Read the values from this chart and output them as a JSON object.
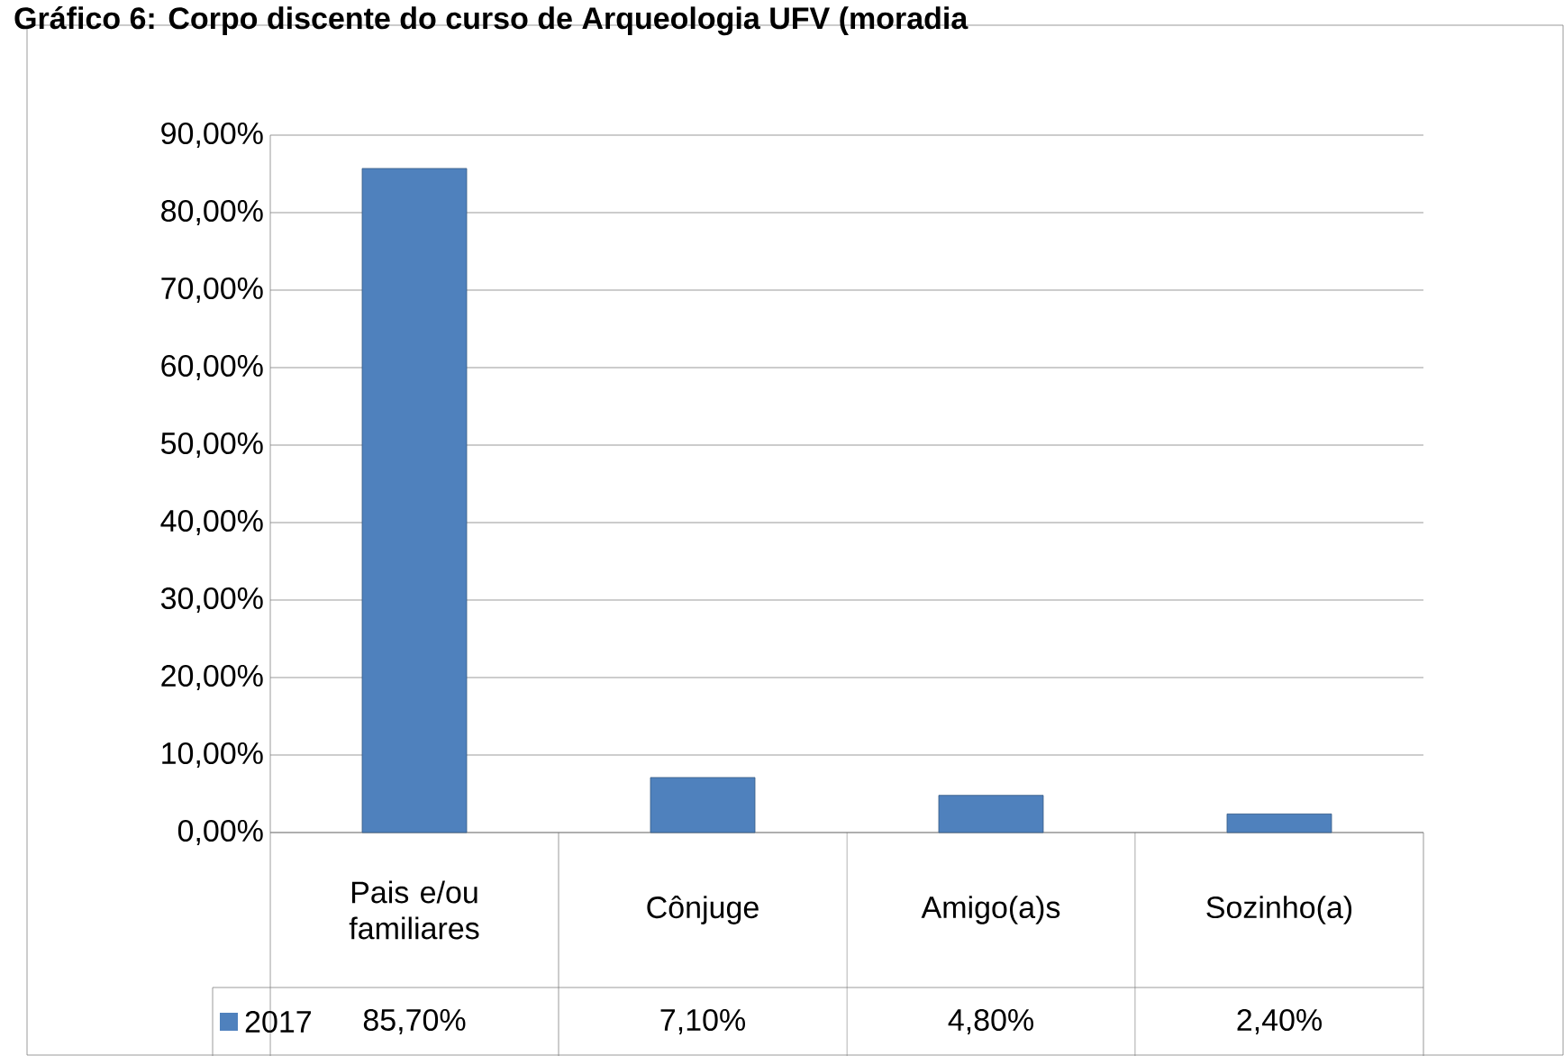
{
  "chart_data": {
    "type": "bar",
    "title": "Gráfico 6: Corpo discente do curso de Arqueologia UFV (moradia",
    "categories": [
      "Pais e/ou familiares",
      "Cônjuge",
      "Amigo(a)s",
      "Sozinho(a)"
    ],
    "series": [
      {
        "name": "2017",
        "color": "#4f81bd",
        "values": [
          85.7,
          7.1,
          4.8,
          2.4
        ],
        "value_labels": [
          "85,70%",
          "7,10%",
          "4,80%",
          "2,40%"
        ]
      }
    ],
    "ylim": [
      0,
      90
    ],
    "yticks": [
      {
        "value": 0,
        "label": "0,00%"
      },
      {
        "value": 10,
        "label": "10,00%"
      },
      {
        "value": 20,
        "label": "20,00%"
      },
      {
        "value": 30,
        "label": "30,00%"
      },
      {
        "value": 40,
        "label": "40,00%"
      },
      {
        "value": 50,
        "label": "50,00%"
      },
      {
        "value": 60,
        "label": "60,00%"
      },
      {
        "value": 70,
        "label": "70,00%"
      },
      {
        "value": 80,
        "label": "80,00%"
      },
      {
        "value": 90,
        "label": "90,00%"
      }
    ],
    "grid": "y",
    "legend": "bottom left"
  }
}
